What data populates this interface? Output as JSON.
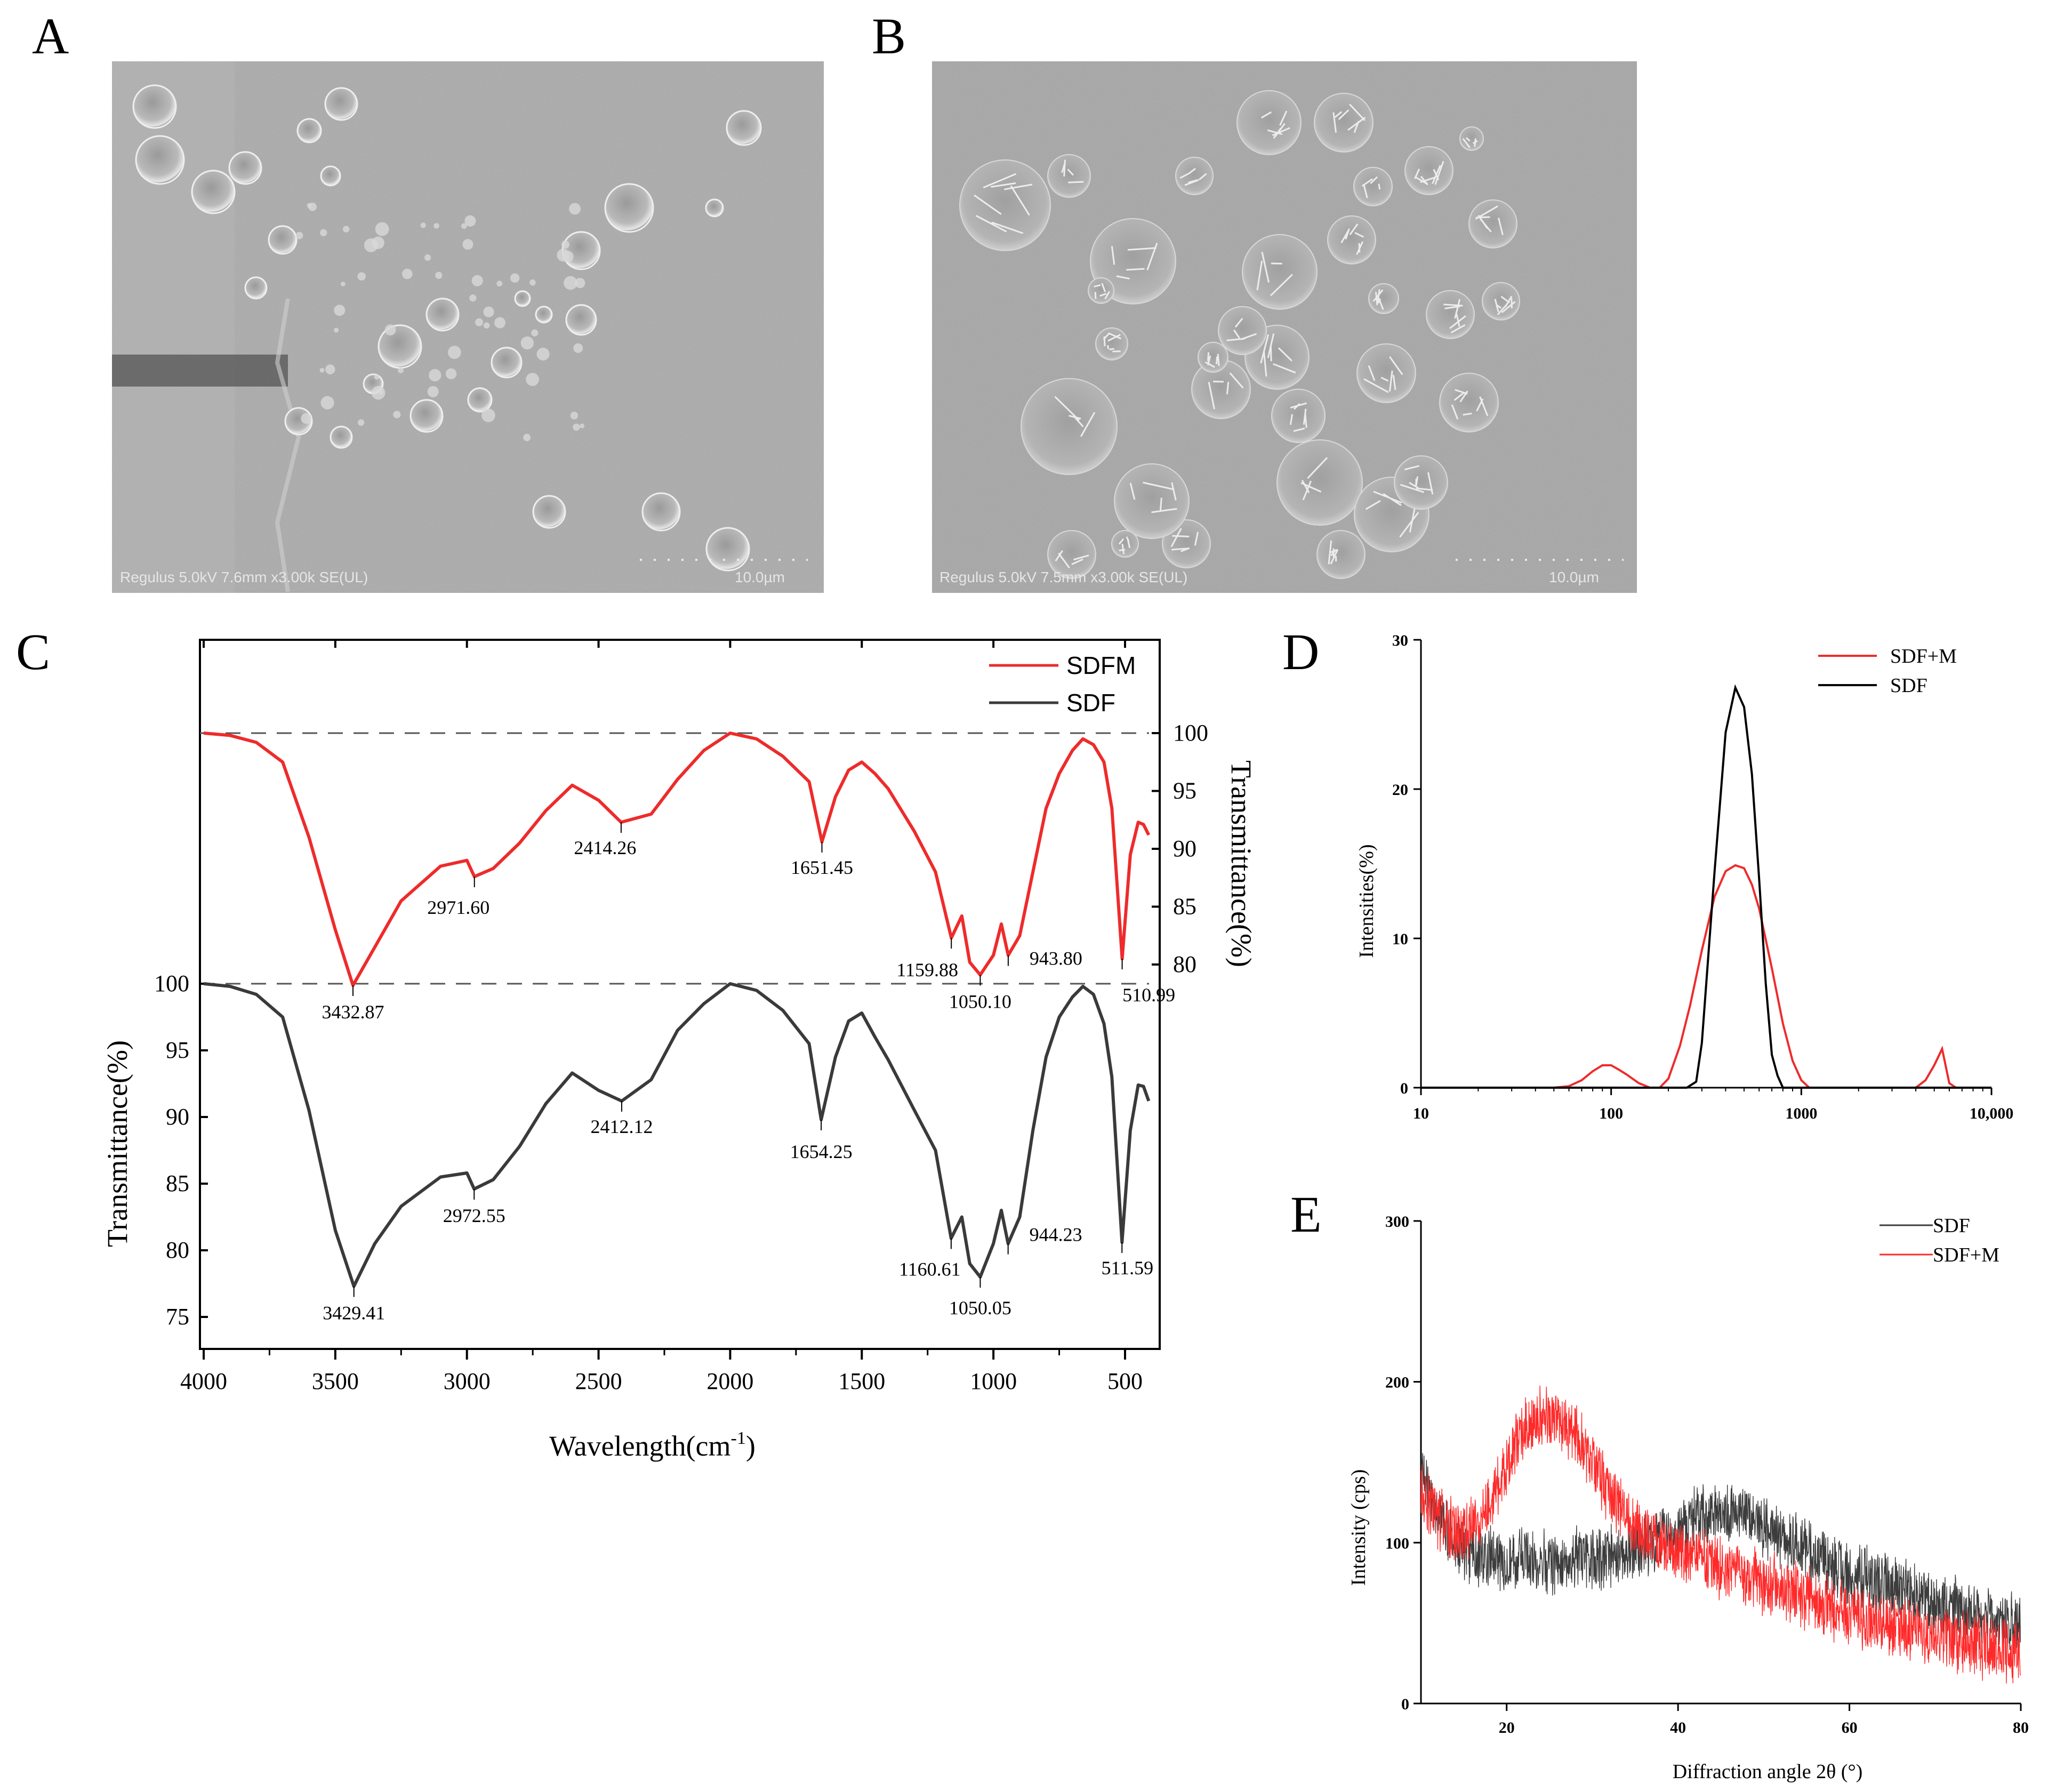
{
  "colors": {
    "red": "#ee2b2b",
    "dark": "#3a3a3a",
    "black": "#000000",
    "grayNoise": "#3c3c3c",
    "redNoise": "#ff2a2a"
  },
  "panels": {
    "A": {
      "letter": "A",
      "caption": "Regulus 5.0kV 7.6mm x3.00k SE(UL)",
      "scale": "10.0µm"
    },
    "B": {
      "letter": "B",
      "caption": "Regulus 5.0kV 7.5mm x3.00k SE(UL)",
      "scale": "10.0µm"
    },
    "C": {
      "letter": "C"
    },
    "D": {
      "letter": "D"
    },
    "E": {
      "letter": "E"
    }
  },
  "chart_data": [
    {
      "id": "C",
      "type": "line",
      "xlabel": "Wavelength(cm-1)",
      "xlabel_main": "Wavelength(cm",
      "xlabel_sup": "-1",
      "xlabel_end": ")",
      "ylabel_left": "Transmittance(%)",
      "ylabel_right": "Transmittance(%)",
      "xlim": [
        4000,
        400
      ],
      "x_ticks": [
        "4000",
        "3500",
        "3000",
        "2500",
        "2000",
        "1500",
        "1000",
        "500"
      ],
      "y_ticks_left": [
        "100",
        "95",
        "90",
        "85",
        "80",
        "75"
      ],
      "y_ticks_right": [
        "100",
        "95",
        "90",
        "85",
        "80"
      ],
      "legend": [
        "SDFM",
        "SDF"
      ],
      "series": [
        {
          "name": "SDFM",
          "x": [
            4000,
            3900,
            3800,
            3700,
            3600,
            3500,
            3432.87,
            3350,
            3250,
            3100,
            3000,
            2971.6,
            2900,
            2800,
            2700,
            2600,
            2500,
            2414.26,
            2300,
            2200,
            2100,
            2000,
            1900,
            1800,
            1700,
            1651.45,
            1600,
            1550,
            1500,
            1450,
            1400,
            1300,
            1220,
            1159.88,
            1120,
            1090,
            1050.1,
            1000,
            970,
            943.8,
            900,
            850,
            800,
            750,
            700,
            660,
            620,
            580,
            550,
            510.99,
            480,
            450,
            430,
            410
          ],
          "y": [
            100,
            99.8,
            99.2,
            97.5,
            91,
            83,
            78.2,
            81.5,
            85.5,
            88.5,
            89,
            87.6,
            88.3,
            90.5,
            93.3,
            95.5,
            94.2,
            92.3,
            93,
            96,
            98.5,
            100,
            99.5,
            98,
            95.8,
            90.6,
            94.5,
            96.8,
            97.5,
            96.5,
            95.2,
            91.5,
            88,
            82.3,
            84.2,
            80.2,
            79.1,
            80.8,
            83.5,
            80.8,
            82.5,
            88,
            93.5,
            96.5,
            98.5,
            99.5,
            99,
            97.5,
            93.5,
            80.5,
            89.5,
            92.3,
            92.1,
            91.2
          ]
        },
        {
          "name": "SDF",
          "x": [
            4000,
            3900,
            3800,
            3700,
            3600,
            3500,
            3429.41,
            3350,
            3250,
            3100,
            3000,
            2972.55,
            2900,
            2800,
            2700,
            2600,
            2500,
            2412.12,
            2300,
            2200,
            2100,
            2000,
            1900,
            1800,
            1700,
            1654.25,
            1600,
            1550,
            1500,
            1450,
            1400,
            1300,
            1220,
            1160.61,
            1120,
            1090,
            1050.05,
            1000,
            970,
            944.23,
            900,
            850,
            800,
            750,
            700,
            660,
            620,
            580,
            550,
            511.59,
            480,
            450,
            430,
            410
          ],
          "y": [
            100,
            99.8,
            99.2,
            97.5,
            90.5,
            81.5,
            77.3,
            80.5,
            83.3,
            85.5,
            85.8,
            84.6,
            85.3,
            87.8,
            91,
            93.3,
            92,
            91.2,
            92.8,
            96.5,
            98.5,
            100,
            99.5,
            98,
            95.5,
            89.8,
            94.5,
            97.2,
            97.8,
            96,
            94.3,
            90.5,
            87.5,
            80.9,
            82.5,
            79,
            78,
            80.5,
            83,
            80.5,
            82.5,
            89,
            94.5,
            97.5,
            99,
            99.8,
            99.2,
            97,
            93,
            80.6,
            89,
            92.4,
            92.3,
            91.2
          ]
        }
      ],
      "peak_labels": {
        "SDFM": [
          "3432.87",
          "2971.60",
          "2414.26",
          "1651.45",
          "1159.88",
          "1050.10",
          "943.80",
          "510.99"
        ],
        "SDF": [
          "3429.41",
          "2972.55",
          "2412.12",
          "1654.25",
          "1160.61",
          "1050.05",
          "944.23",
          "511.59"
        ]
      }
    },
    {
      "id": "D",
      "type": "line",
      "xscale": "log",
      "xlim": [
        10,
        10000
      ],
      "ylim": [
        0,
        30
      ],
      "x_ticks": [
        "10",
        "100",
        "1000",
        "10,000"
      ],
      "y_ticks": [
        "0",
        "10",
        "20",
        "30"
      ],
      "ylabel": "Intensities(%)",
      "legend": [
        "SDF+M",
        "SDF"
      ],
      "series": [
        {
          "name": "SDF+M",
          "x": [
            10,
            50,
            60,
            70,
            80,
            90,
            100,
            110,
            120,
            140,
            160,
            180,
            200,
            230,
            260,
            300,
            350,
            400,
            450,
            500,
            550,
            600,
            700,
            800,
            900,
            1000,
            1100,
            1200,
            2000,
            3000,
            4000,
            4500,
            5000,
            5500,
            6000,
            6500,
            10000
          ],
          "y": [
            0,
            0,
            0.1,
            0.5,
            1.1,
            1.5,
            1.5,
            1.2,
            0.9,
            0.3,
            0,
            0,
            0.6,
            2.8,
            5.5,
            9.2,
            12.8,
            14.5,
            14.9,
            14.7,
            13.6,
            12,
            8,
            4.3,
            1.8,
            0.5,
            0,
            0,
            0,
            0,
            0,
            0.5,
            1.5,
            2.6,
            0.3,
            0,
            0
          ]
        },
        {
          "name": "SDF",
          "x": [
            10,
            200,
            250,
            280,
            300,
            350,
            400,
            450,
            500,
            550,
            600,
            650,
            700,
            750,
            800,
            900,
            10000
          ],
          "y": [
            0,
            0,
            0,
            0.4,
            3,
            14.5,
            23.8,
            26.8,
            25.5,
            21,
            14,
            7,
            2.2,
            0.8,
            0,
            0,
            0
          ]
        }
      ]
    },
    {
      "id": "E",
      "type": "line",
      "xlim": [
        10,
        80
      ],
      "ylim": [
        0,
        300
      ],
      "x_ticks": [
        "20",
        "40",
        "60",
        "80"
      ],
      "y_ticks": [
        "0",
        "100",
        "200",
        "300"
      ],
      "xlabel": "Diffraction angle 2θ (°)",
      "ylabel": "Intensity (cps)",
      "legend": [
        "SDF",
        "SDF+M"
      ],
      "series": [
        {
          "name": "SDF",
          "x": [
            10,
            12,
            15,
            18,
            20,
            25,
            30,
            35,
            40,
            42,
            45,
            48,
            50,
            55,
            60,
            65,
            70,
            75,
            80
          ],
          "y": [
            140,
            120,
            95,
            90,
            90,
            88,
            90,
            95,
            105,
            115,
            120,
            118,
            110,
            95,
            82,
            72,
            62,
            55,
            50
          ]
        },
        {
          "name": "SDF+M",
          "x": [
            10,
            12,
            14,
            16,
            18,
            20,
            22,
            24,
            25,
            26,
            28,
            30,
            32,
            35,
            38,
            40,
            45,
            50,
            55,
            60,
            65,
            70,
            75,
            80
          ],
          "y": [
            135,
            115,
            105,
            110,
            125,
            150,
            170,
            178,
            180,
            178,
            168,
            150,
            130,
            110,
            100,
            95,
            85,
            75,
            65,
            55,
            48,
            42,
            36,
            32
          ]
        }
      ]
    }
  ]
}
